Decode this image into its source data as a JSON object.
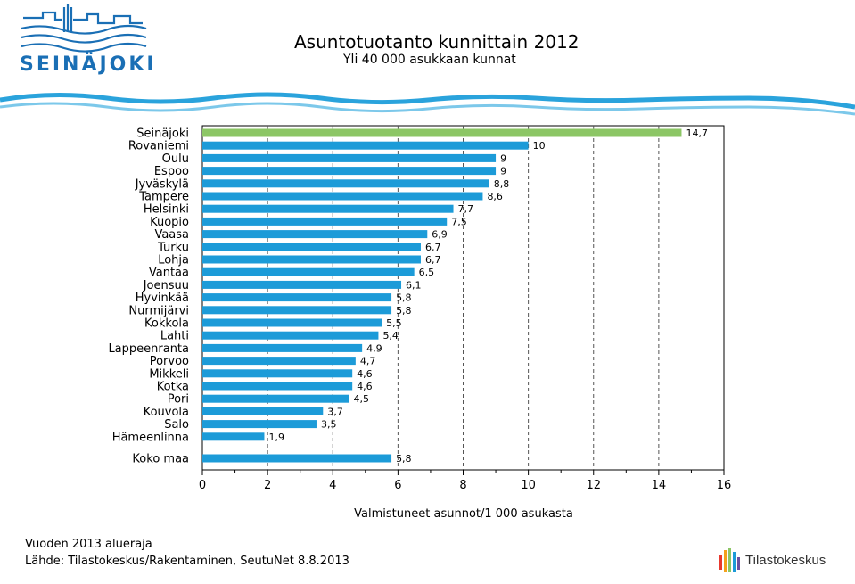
{
  "logo": {
    "name": "SEINÄJOKI"
  },
  "header": {
    "title": "Asuntotuotanto kunnittain 2012",
    "subtitle": "Yli 40 000 asukkaan kunnat"
  },
  "footer": {
    "note": "Vuoden 2013 alueraja",
    "source": "Lähde: Tilastokeskus/Rakentaminen, SeutuNet 8.8.2013",
    "brand": "Tilastokeskus"
  },
  "colors": {
    "bar": "#1c9bd8",
    "highlight": "#8cc665",
    "logo_blue": "#1a6fb5"
  },
  "chart_data": {
    "type": "bar",
    "orientation": "horizontal",
    "title": "Asuntotuotanto kunnittain 2012",
    "subtitle": "Yli 40 000 asukkaan kunnat",
    "xlabel": "Valmistuneet asunnot/1 000 asukasta",
    "ylabel": "",
    "xlim": [
      0,
      16
    ],
    "xticks": [
      "0",
      "2",
      "4",
      "6",
      "8",
      "10",
      "12",
      "14",
      "16"
    ],
    "grid": "vertical dashed at even ticks",
    "categories": [
      "Seinäjoki",
      "Rovaniemi",
      "Oulu",
      "Espoo",
      "Jyväskylä",
      "Tampere",
      "Helsinki",
      "Kuopio",
      "Vaasa",
      "Turku",
      "Lohja",
      "Vantaa",
      "Joensuu",
      "Hyvinkää",
      "Nurmijärvi",
      "Kokkola",
      "Lahti",
      "Lappeenranta",
      "Porvoo",
      "Mikkeli",
      "Kotka",
      "Pori",
      "Kouvola",
      "Salo",
      "Hämeenlinna"
    ],
    "values": [
      14.7,
      10,
      9,
      9,
      8.8,
      8.6,
      7.7,
      7.5,
      6.9,
      6.7,
      6.7,
      6.5,
      6.1,
      5.8,
      5.8,
      5.5,
      5.4,
      4.9,
      4.7,
      4.6,
      4.6,
      4.5,
      3.7,
      3.5,
      1.9
    ],
    "value_labels": [
      "14,7",
      "10",
      "9",
      "9",
      "8,8",
      "8,6",
      "7,7",
      "7,5",
      "6,9",
      "6,7",
      "6,7",
      "6,5",
      "6,1",
      "5,8",
      "5,8",
      "5,5",
      "5,4",
      "4,9",
      "4,7",
      "4,6",
      "4,6",
      "4,5",
      "3,7",
      "3,5",
      "1,9"
    ],
    "highlight_category": "Seinäjoki",
    "total": {
      "category": "Koko maa",
      "value": 5.8,
      "value_label": "5,8"
    }
  }
}
